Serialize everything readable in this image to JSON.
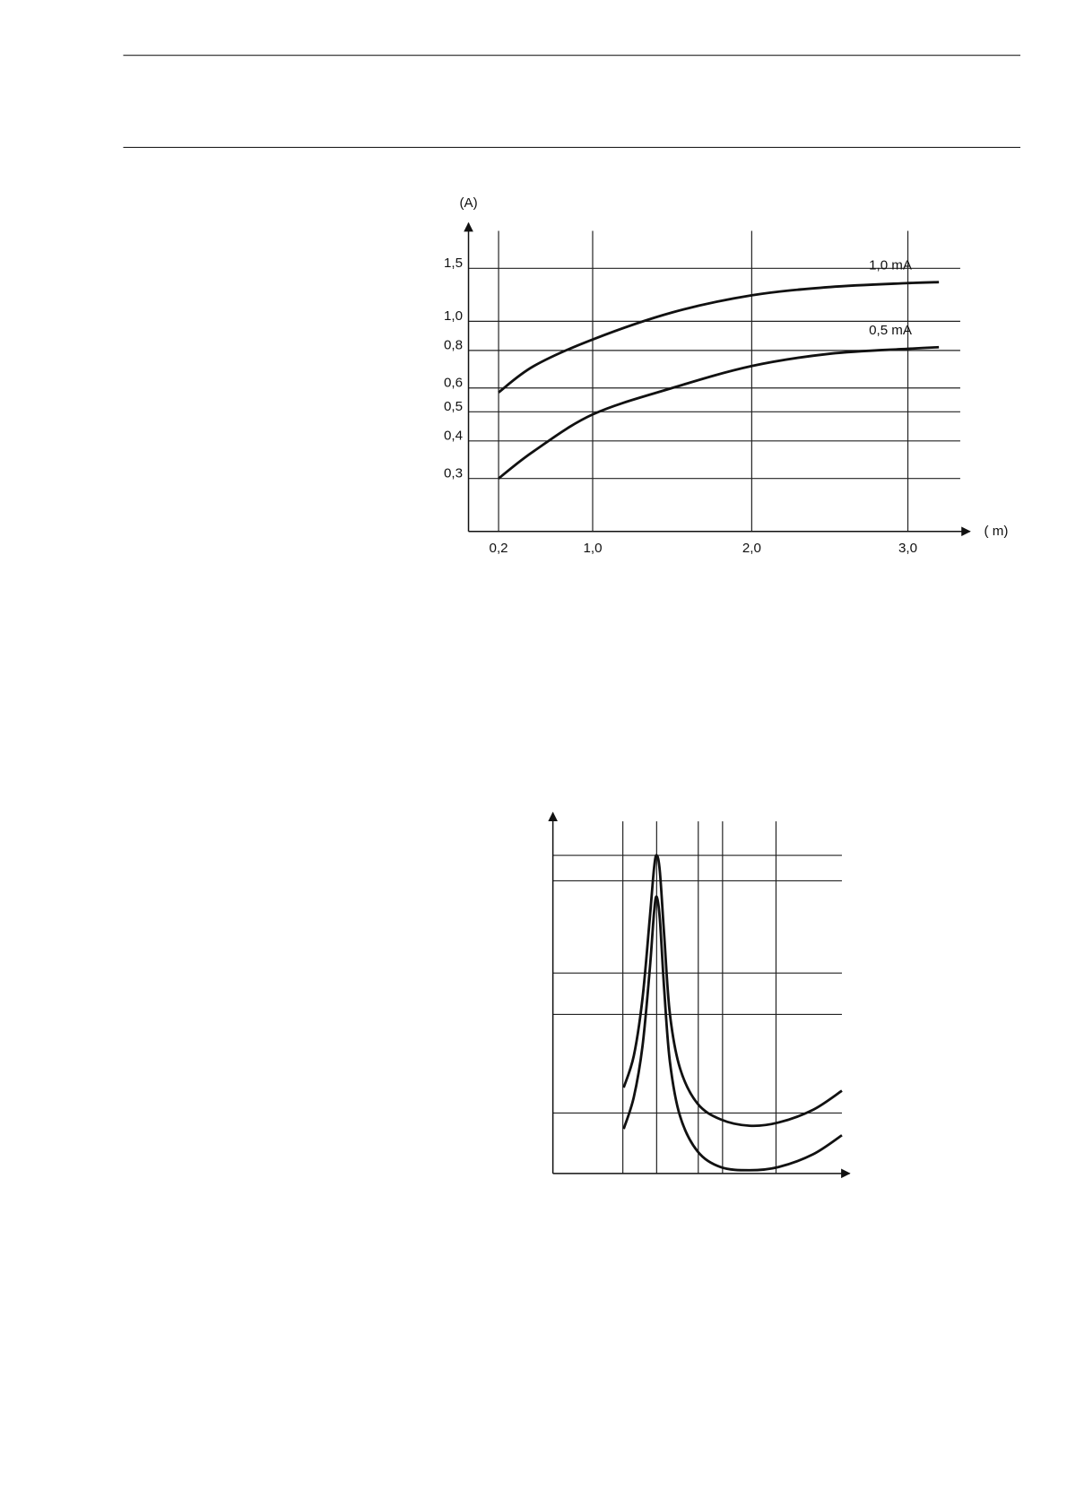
{
  "chart_data": [
    {
      "type": "line",
      "y_label": "(A)",
      "x_label": "( m)",
      "x": [
        0.2,
        0.5,
        1.0,
        1.5,
        2.0,
        2.5,
        3.0,
        3.2
      ],
      "series": [
        {
          "name": "1,0 mA",
          "color": "#111111",
          "values": [
            0.58,
            0.71,
            0.87,
            1.07,
            1.22,
            1.3,
            1.34,
            1.35
          ]
        },
        {
          "name": "0,5 mA",
          "color": "#111111",
          "values": [
            0.3,
            0.37,
            0.49,
            0.6,
            0.71,
            0.78,
            0.81,
            0.82
          ]
        }
      ],
      "xlim": [
        0,
        3.4
      ],
      "xticks": [
        {
          "value": 0.2,
          "label": "0,2"
        },
        {
          "value": 1.0,
          "label": "1,0"
        },
        {
          "value": 2.0,
          "label": "2,0"
        },
        {
          "value": 3.0,
          "label": "3,0"
        }
      ],
      "ylim": [
        0.2,
        2
      ],
      "yscale": "log",
      "yticks": [
        {
          "value": 0.3,
          "label": "0,3"
        },
        {
          "value": 0.4,
          "label": "0,4"
        },
        {
          "value": 0.5,
          "label": "0,5"
        },
        {
          "value": 0.6,
          "label": "0,6"
        },
        {
          "value": 0.8,
          "label": "0,8"
        },
        {
          "value": 1.0,
          "label": "1,0"
        },
        {
          "value": 1.5,
          "label": "1,5"
        }
      ],
      "grid": true
    },
    {
      "type": "line",
      "x": [
        24.5,
        28,
        31,
        33.5,
        35,
        35.9,
        37,
        38.5,
        40.5,
        44,
        50,
        58,
        68,
        78,
        90,
        100
      ],
      "series": [
        {
          "color": "#111111",
          "values": [
            27,
            37,
            55,
            80,
            96,
            100,
            95,
            75,
            50,
            33,
            22,
            17,
            15,
            16,
            20,
            26
          ]
        },
        {
          "color": "#111111",
          "values": [
            14,
            24,
            40,
            64,
            82,
            87,
            80,
            58,
            35,
            18,
            7,
            2,
            1,
            2,
            6,
            12
          ]
        }
      ],
      "xlim": [
        0,
        100
      ],
      "xticks": [
        24.2,
        35.9,
        50.3,
        58.7,
        77.2
      ],
      "ylim": [
        0,
        100
      ],
      "yticks": [
        100,
        92,
        63,
        50,
        19
      ],
      "grid": true
    }
  ]
}
